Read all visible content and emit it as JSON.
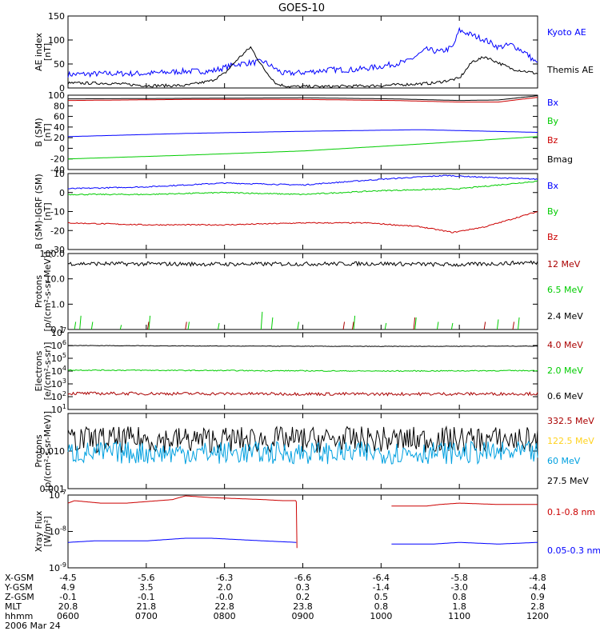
{
  "title": "GOES-10",
  "colors": {
    "black": "#000000",
    "blue": "#0000ff",
    "red": "#cc0000",
    "green": "#00cc00",
    "yellow": "#ffd21e",
    "cyan": "#00a0e0",
    "darkred": "#aa0000"
  },
  "x_axis": {
    "row_labels": [
      "X-GSM",
      "Y-GSM",
      "Z-GSM",
      "MLT",
      "hhmm"
    ],
    "ticks": [
      {
        "t": 0,
        "x": "-4.5",
        "y": "4.9",
        "z": "-0.1",
        "mlt": "20.8",
        "hhmm": "0600"
      },
      {
        "t": 60,
        "x": "-5.6",
        "y": "3.5",
        "z": "-0.1",
        "mlt": "21.8",
        "hhmm": "0700"
      },
      {
        "t": 120,
        "x": "-6.3",
        "y": "2.0",
        "z": "-0.0",
        "mlt": "22.8",
        "hhmm": "0800"
      },
      {
        "t": 180,
        "x": "-6.6",
        "y": "0.3",
        "z": "0.2",
        "mlt": "23.8",
        "hhmm": "0900"
      },
      {
        "t": 240,
        "x": "-6.4",
        "y": "-1.4",
        "z": "0.5",
        "mlt": "0.8",
        "hhmm": "1000"
      },
      {
        "t": 300,
        "x": "-5.8",
        "y": "-3.0",
        "z": "0.8",
        "mlt": "1.8",
        "hhmm": "1100"
      },
      {
        "t": 360,
        "x": "-4.8",
        "y": "-4.4",
        "z": "0.9",
        "mlt": "2.8",
        "hhmm": "1200"
      }
    ],
    "date": "2006 Mar 24"
  },
  "chart_data": [
    {
      "type": "line",
      "key": "ae",
      "scale": "linear",
      "ylim": [
        0,
        150
      ],
      "ylabel": [
        "AE index",
        "[nT]"
      ],
      "yticks": [
        {
          "v": 0,
          "label": "0"
        },
        {
          "v": 50,
          "label": "50"
        },
        {
          "v": 100,
          "label": "100"
        },
        {
          "v": 150,
          "label": "150"
        }
      ],
      "legend": [
        {
          "label": "Kyoto AE",
          "color": "blue"
        },
        {
          "label": "Themis AE",
          "color": "black"
        }
      ],
      "series": [
        {
          "name": "Kyoto AE",
          "color": "blue",
          "jitter": 6,
          "x": [
            0,
            30,
            60,
            90,
            110,
            130,
            150,
            165,
            180,
            200,
            220,
            240,
            260,
            275,
            285,
            295,
            300,
            310,
            320,
            330,
            340,
            350,
            360
          ],
          "y": [
            28,
            30,
            30,
            35,
            35,
            50,
            55,
            30,
            32,
            38,
            38,
            45,
            55,
            80,
            75,
            85,
            120,
            110,
            100,
            85,
            90,
            75,
            50
          ]
        },
        {
          "name": "Themis AE",
          "color": "black",
          "jitter": 3,
          "x": [
            0,
            30,
            60,
            90,
            110,
            120,
            130,
            140,
            150,
            160,
            170,
            200,
            240,
            280,
            300,
            310,
            320,
            340,
            360
          ],
          "y": [
            10,
            10,
            5,
            5,
            15,
            30,
            60,
            85,
            40,
            8,
            3,
            3,
            5,
            10,
            20,
            55,
            65,
            40,
            30
          ]
        }
      ]
    },
    {
      "type": "line",
      "key": "b",
      "scale": "linear",
      "ylim": [
        -40,
        100
      ],
      "ylabel": [
        "B (SM)",
        "[nT]"
      ],
      "yticks": [
        {
          "v": -40,
          "label": "-40"
        },
        {
          "v": -20,
          "label": "-20"
        },
        {
          "v": 0,
          "label": "0"
        },
        {
          "v": 20,
          "label": "20"
        },
        {
          "v": 40,
          "label": "40"
        },
        {
          "v": 60,
          "label": "60"
        },
        {
          "v": 80,
          "label": "80"
        },
        {
          "v": 100,
          "label": "100"
        }
      ],
      "legend": [
        {
          "label": "Bx",
          "color": "blue"
        },
        {
          "label": "By",
          "color": "green"
        },
        {
          "label": "Bz",
          "color": "red"
        },
        {
          "label": "Bmag",
          "color": "black"
        }
      ],
      "series": [
        {
          "name": "Bx",
          "color": "blue",
          "jitter": 0,
          "x": [
            0,
            90,
            180,
            270,
            360
          ],
          "y": [
            22,
            28,
            32,
            35,
            30
          ]
        },
        {
          "name": "By",
          "color": "green",
          "jitter": 0,
          "x": [
            0,
            90,
            180,
            270,
            360
          ],
          "y": [
            -20,
            -13,
            -5,
            8,
            22
          ]
        },
        {
          "name": "Bz",
          "color": "red",
          "jitter": 0,
          "x": [
            0,
            90,
            180,
            250,
            300,
            330,
            360
          ],
          "y": [
            90,
            92,
            92,
            90,
            87,
            87,
            96
          ]
        },
        {
          "name": "Bmag",
          "color": "black",
          "jitter": 0,
          "x": [
            0,
            90,
            180,
            250,
            300,
            330,
            360
          ],
          "y": [
            93,
            94,
            95,
            93,
            90,
            91,
            99
          ]
        }
      ]
    },
    {
      "type": "line",
      "key": "bmodel",
      "scale": "linear",
      "ylim": [
        -30,
        10
      ],
      "ylabel": [
        "B (SM)-IGRF (SM)",
        "[nT]"
      ],
      "yticks": [
        {
          "v": -30,
          "label": "-30"
        },
        {
          "v": -20,
          "label": "-20"
        },
        {
          "v": -10,
          "label": "-10"
        },
        {
          "v": 0,
          "label": "0"
        },
        {
          "v": 10,
          "label": "10"
        }
      ],
      "legend": [
        {
          "label": "Bx",
          "color": "blue"
        },
        {
          "label": "By",
          "color": "green"
        },
        {
          "label": "Bz",
          "color": "red"
        }
      ],
      "series": [
        {
          "name": "Bx",
          "color": "blue",
          "jitter": 0.3,
          "x": [
            0,
            60,
            120,
            180,
            240,
            290,
            320,
            360
          ],
          "y": [
            2,
            3,
            5,
            4,
            7,
            9,
            8,
            7
          ]
        },
        {
          "name": "By",
          "color": "green",
          "jitter": 0.3,
          "x": [
            0,
            60,
            120,
            180,
            240,
            300,
            360
          ],
          "y": [
            -1,
            -1,
            0,
            -1,
            1,
            2,
            6
          ]
        },
        {
          "name": "Bz",
          "color": "red",
          "jitter": 0.3,
          "x": [
            0,
            60,
            120,
            180,
            230,
            270,
            295,
            320,
            360
          ],
          "y": [
            -16,
            -17,
            -17,
            -16,
            -16,
            -18,
            -21,
            -18,
            -10
          ]
        }
      ]
    },
    {
      "type": "line",
      "key": "p1",
      "scale": "log",
      "ylim": [
        0.1,
        100
      ],
      "ylabel": [
        "Protons",
        "[p/(cm²-s-sr-MeV)]"
      ],
      "yticks": [
        {
          "v": 0.1,
          "label": "0.1"
        },
        {
          "v": 1,
          "label": "1.0"
        },
        {
          "v": 10,
          "label": "10.0"
        },
        {
          "v": 100,
          "label": "100.0"
        }
      ],
      "legend": [
        {
          "label": "12 MeV",
          "color": "darkred"
        },
        {
          "label": "6.5 MeV",
          "color": "green"
        },
        {
          "label": "2.4 MeV",
          "color": "black"
        }
      ],
      "series": [
        {
          "name": "2.4 MeV",
          "color": "black",
          "jitter": 0.08,
          "x": [
            0,
            120,
            240,
            300,
            360
          ],
          "y": [
            40,
            38,
            40,
            36,
            45
          ]
        },
        {
          "name": "6.5 MeV",
          "color": "green",
          "spikes": true,
          "x": [
            5,
            9,
            18,
            40,
            62,
            92,
            115,
            148,
            156,
            176,
            219,
            243,
            266,
            283,
            294,
            329,
            345
          ],
          "y": [
            0.2,
            0.35,
            0.2,
            0.15,
            0.35,
            0.2,
            0.18,
            0.5,
            0.3,
            0.2,
            0.35,
            0.18,
            0.3,
            0.2,
            0.18,
            0.25,
            0.3
          ]
        },
        {
          "name": "12 MeV",
          "color": "darkred",
          "spikes": true,
          "x": [
            61,
            90,
            211,
            218,
            265,
            319,
            341
          ],
          "y": [
            0.2,
            0.2,
            0.2,
            0.2,
            0.3,
            0.2,
            0.2
          ]
        }
      ]
    },
    {
      "type": "line",
      "key": "e",
      "scale": "log",
      "ylim": [
        10,
        10000000
      ],
      "ylabel": [
        "Electrons",
        "[e/(cm²-s-sr)]"
      ],
      "yticks": [
        {
          "v": 10,
          "label": "10",
          "sup": "1"
        },
        {
          "v": 100,
          "label": "10",
          "sup": "2"
        },
        {
          "v": 1000,
          "label": "10",
          "sup": "3"
        },
        {
          "v": 10000,
          "label": "10",
          "sup": "4"
        },
        {
          "v": 100000,
          "label": "10",
          "sup": "5"
        },
        {
          "v": 1000000,
          "label": "10",
          "sup": "6"
        },
        {
          "v": 10000000,
          "label": "10",
          "sup": "7"
        }
      ],
      "legend": [
        {
          "label": "4.0 MeV",
          "color": "darkred"
        },
        {
          "label": "2.0 MeV",
          "color": "green"
        },
        {
          "label": "0.6 MeV",
          "color": "black"
        }
      ],
      "series": [
        {
          "name": "0.6 MeV",
          "color": "black",
          "jitter": 0.02,
          "x": [
            0,
            120,
            240,
            360
          ],
          "y": [
            1000000,
            900000,
            850000,
            900000
          ]
        },
        {
          "name": "2.0 MeV",
          "color": "green",
          "jitter": 0.04,
          "x": [
            0,
            120,
            240,
            360
          ],
          "y": [
            12000,
            11000,
            10000,
            11000
          ]
        },
        {
          "name": "4.0 MeV",
          "color": "darkred",
          "jitter": 0.12,
          "x": [
            0,
            120,
            240,
            360
          ],
          "y": [
            180,
            170,
            160,
            170
          ]
        }
      ]
    },
    {
      "type": "line",
      "key": "p2",
      "scale": "log",
      "ylim": [
        0.001,
        0.1
      ],
      "ylabel": [
        "Protons",
        "[p/(cm²-s-sr-MeV)]"
      ],
      "yticks": [
        {
          "v": 0.001,
          "label": "0.001"
        },
        {
          "v": 0.01,
          "label": "0.010"
        }
      ],
      "legend": [
        {
          "label": "332.5 MeV",
          "color": "darkred"
        },
        {
          "label": "122.5 MeV",
          "color": "yellow"
        },
        {
          "label": "60 MeV",
          "color": "cyan"
        },
        {
          "label": "27.5 MeV",
          "color": "black"
        }
      ],
      "series": [
        {
          "name": "27.5 MeV",
          "color": "black",
          "jitter": 0.35,
          "x": [
            0,
            180,
            360
          ],
          "y": [
            0.02,
            0.02,
            0.02
          ]
        },
        {
          "name": "60 MeV",
          "color": "cyan",
          "jitter": 0.3,
          "x": [
            0,
            180,
            360
          ],
          "y": [
            0.009,
            0.009,
            0.009
          ]
        }
      ]
    },
    {
      "type": "line",
      "key": "xray",
      "scale": "log",
      "ylim": [
        1e-09,
        1e-07
      ],
      "ylabel": [
        "Xray  Flux",
        "[W/m²]"
      ],
      "yticks": [
        {
          "v": 1e-09,
          "label": "10",
          "sup": "-9"
        },
        {
          "v": 1e-08,
          "label": "10",
          "sup": "-8"
        },
        {
          "v": 1e-07,
          "label": "10",
          "sup": "-7"
        }
      ],
      "legend": [
        {
          "label": "0.1-0.8 nm",
          "color": "red"
        },
        {
          "label": "0.05-0.3 nm",
          "color": "blue"
        }
      ],
      "series": [
        {
          "name": "0.1-0.8 nm",
          "color": "red",
          "jitter": 0,
          "x": [
            0,
            5,
            25,
            45,
            80,
            90,
            110,
            150,
            165,
            175,
            175.5
          ],
          "y": [
            6e-08,
            7e-08,
            6e-08,
            6e-08,
            7.5e-08,
            9.5e-08,
            8.5e-08,
            7.5e-08,
            7e-08,
            7e-08,
            3.5e-09
          ]
        },
        {
          "name": "0.1-0.8 nm",
          "color": "red",
          "jitter": 0,
          "x": [
            248,
            275,
            285,
            300,
            330,
            360
          ],
          "y": [
            5e-08,
            5e-08,
            5.5e-08,
            6e-08,
            5.5e-08,
            5.5e-08
          ]
        },
        {
          "name": "0.05-0.3 nm",
          "color": "blue",
          "jitter": 0,
          "x": [
            0,
            20,
            60,
            90,
            110,
            150,
            175
          ],
          "y": [
            5e-09,
            5.5e-09,
            5.5e-09,
            6.5e-09,
            6.5e-09,
            5.5e-09,
            5e-09
          ]
        },
        {
          "name": "0.05-0.3 nm",
          "color": "blue",
          "jitter": 0,
          "x": [
            248,
            280,
            300,
            330,
            360
          ],
          "y": [
            4.5e-09,
            4.5e-09,
            5e-09,
            4.5e-09,
            5e-09
          ]
        }
      ]
    }
  ]
}
